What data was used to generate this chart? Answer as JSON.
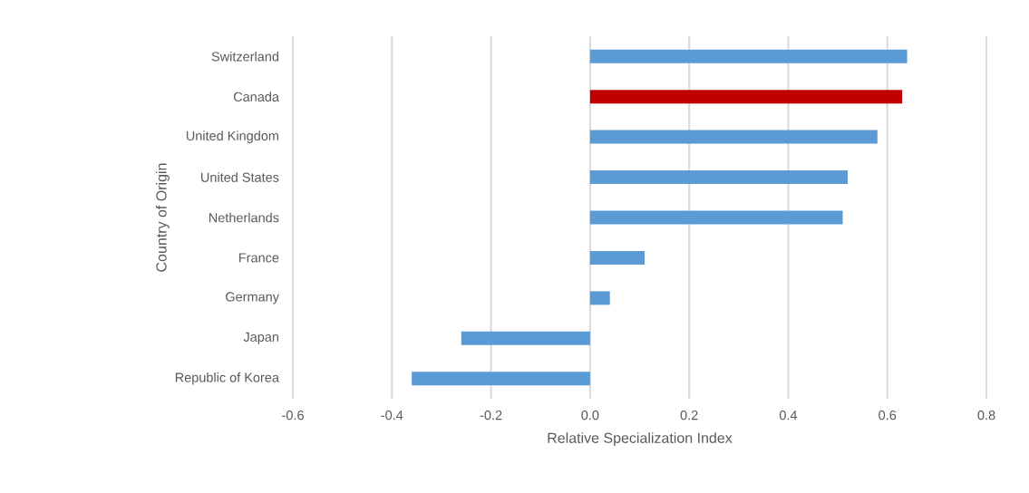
{
  "chart_data": {
    "type": "bar",
    "orientation": "horizontal",
    "categories": [
      "Switzerland",
      "Canada",
      "United Kingdom",
      "United States",
      "Netherlands",
      "France",
      "Germany",
      "Japan",
      "Republic of Korea"
    ],
    "values": [
      0.64,
      0.63,
      0.58,
      0.52,
      0.51,
      0.11,
      0.04,
      -0.26,
      -0.36
    ],
    "colors": [
      "#5b9bd5",
      "#c00000",
      "#5b9bd5",
      "#5b9bd5",
      "#5b9bd5",
      "#5b9bd5",
      "#5b9bd5",
      "#5b9bd5",
      "#5b9bd5"
    ],
    "xlim": [
      -0.6,
      0.8
    ],
    "xticks": [
      -0.6,
      -0.4,
      -0.2,
      {
        "value": 0,
        "label": "0.0"
      },
      0.2,
      0.4,
      0.6,
      0.8
    ],
    "xlabel": "Relative Specialization Index",
    "ylabel": "Country of Origin",
    "grid": "x"
  }
}
